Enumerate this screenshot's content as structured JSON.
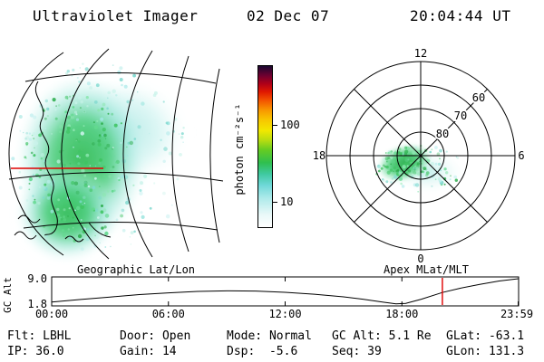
{
  "header": {
    "instrument": "Ultraviolet Imager",
    "date": "02 Dec 07",
    "time": "20:04:44 UT"
  },
  "colorbar": {
    "unit_label": "photon cm⁻²s⁻¹",
    "ticks": [
      "100",
      "10"
    ]
  },
  "polar_plot": {
    "mlt_top": "12",
    "mlt_left": "18",
    "mlt_right": "6",
    "mlt_bottom": "0",
    "lat_rings": [
      "60",
      "70",
      "80"
    ]
  },
  "strip_chart": {
    "title_left": "Geographic Lat/Lon",
    "title_right": "Apex MLat/MLT",
    "y_label": "GC Alt",
    "y_top": "9.0",
    "y_bottom": "1.8",
    "xticks": [
      "00:00",
      "06:00",
      "12:00",
      "18:00",
      "23:59"
    ]
  },
  "status": {
    "row1": [
      "Flt: LBHL",
      "Door: Open",
      "Mode: Normal",
      "GC Alt: 5.1 Re",
      "GLat: -63.1"
    ],
    "row2": [
      "IP: 36.0",
      "Gain: 14",
      "Dsp:  -5.6",
      "Seq: 39",
      "GLon: 131.3"
    ]
  },
  "colors": {
    "time_marker": "#e00000",
    "map_highlight_line": "#e00000",
    "aurora_green": "#2fbf4f",
    "aurora_cyan": "#7fd9d9",
    "background": "#ffffff",
    "foreground": "#000000"
  },
  "chart_data": [
    {
      "type": "heatmap",
      "projection": "Geographic Lat/Lon",
      "description_label": "photon cm⁻²s⁻¹",
      "colorbar": {
        "label": "photon cm⁻²s⁻¹",
        "scale": "log",
        "tick_values": [
          10,
          100
        ],
        "gradient_bottom_to_top": [
          "#ffffff",
          "#aeeaea",
          "#6fd8d8",
          "#2fbf4f",
          "#b8dd11",
          "#f2e800",
          "#f89400",
          "#f25000",
          "#b00018",
          "#1a0830"
        ]
      }
    },
    {
      "type": "heatmap",
      "projection": "Apex MLat/MLT",
      "mlat_rings": [
        80,
        70,
        60
      ],
      "mlt_axis_labels": [
        12,
        18,
        6,
        0
      ]
    },
    {
      "type": "line",
      "ylabel": "GC Alt",
      "ylim": [
        1.8,
        9.0
      ],
      "xticks": [
        "00:00",
        "06:00",
        "12:00",
        "18:00",
        "23:59"
      ],
      "x_hours": [
        0,
        1.5,
        3,
        4.5,
        6,
        7.5,
        9,
        10.5,
        12,
        13.5,
        15,
        16,
        17,
        17.7,
        18.2,
        19,
        20.08,
        21,
        22,
        23,
        23.98
      ],
      "alt_re": [
        2.4,
        3.1,
        3.8,
        4.5,
        5.0,
        5.4,
        5.55,
        5.5,
        5.15,
        4.6,
        3.85,
        3.2,
        2.4,
        1.85,
        2.0,
        3.2,
        5.1,
        6.3,
        7.4,
        8.35,
        9.0
      ],
      "current_time_hours": 20.08,
      "current_alt_re": 5.1
    }
  ]
}
